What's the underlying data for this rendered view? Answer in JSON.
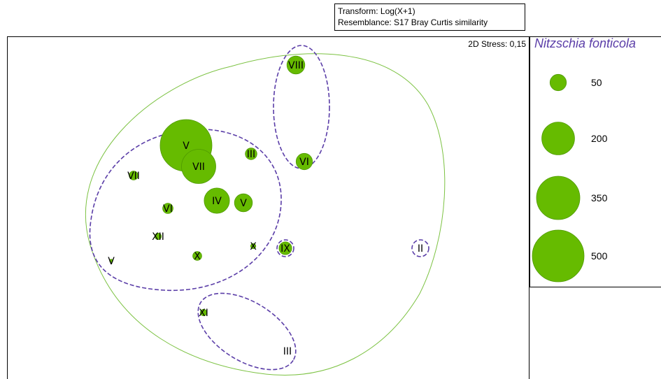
{
  "chart_data": {
    "type": "scatter",
    "subtype": "nMDS bubble plot",
    "transform": "Transform: Log(X+1)",
    "resemblance": "Resemblance: S17 Bray Curtis similarity",
    "stress": "2D Stress: 0,15",
    "bubble_variable": "Nitzschia fonticola",
    "legend_values": [
      "50",
      "200",
      "350",
      "500"
    ],
    "legend_numeric": [
      50,
      200,
      350,
      500
    ],
    "colors": {
      "bubble_fill": "#66bb00",
      "bubble_stroke": "#4f9a00",
      "outer_ellipse": "#7cc242",
      "cluster_ellipse": "#5b3ea8",
      "legend_title": "#5b3ea8"
    },
    "grid": false,
    "points": [
      {
        "label": "VIII",
        "value": 60
      },
      {
        "label": "V",
        "value": 500
      },
      {
        "label": "VII",
        "value": 220
      },
      {
        "label": "III",
        "value": 25
      },
      {
        "label": "VI",
        "value": 50
      },
      {
        "label": "VII",
        "value": 15
      },
      {
        "label": "IV",
        "value": 120
      },
      {
        "label": "V",
        "value": 60
      },
      {
        "label": "VI",
        "value": 20
      },
      {
        "label": "XII",
        "value": 8
      },
      {
        "label": "X",
        "value": 15
      },
      {
        "label": "X",
        "value": 5
      },
      {
        "label": "IX",
        "value": 30
      },
      {
        "label": "V",
        "value": 2
      },
      {
        "label": "II",
        "value": 0
      },
      {
        "label": "XI",
        "value": 8
      },
      {
        "label": "III",
        "value": 0
      }
    ]
  }
}
